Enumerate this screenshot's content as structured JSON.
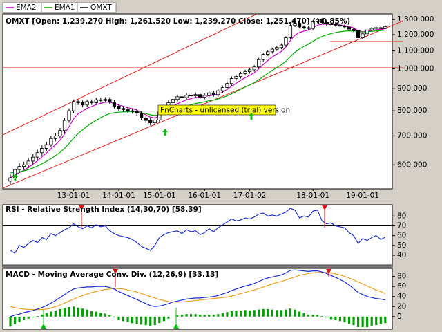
{
  "chart_data": [
    {
      "type": "candlestick",
      "title": "OMXT [Open: 1,239.270  High: 1,261.520  Low: 1,239.270  Close: 1,251.470] (+0.85%)",
      "name": "OMXT",
      "color": "#000000",
      "annotation": "FnCharts - unlicensed (trial) version",
      "categories": [
        null,
        null,
        null,
        null,
        null,
        null,
        null,
        null,
        null,
        null,
        null,
        null,
        null,
        null,
        "13-01-01",
        null,
        null,
        null,
        null,
        null,
        null,
        null,
        null,
        null,
        "14-01-01",
        null,
        null,
        null,
        null,
        null,
        null,
        null,
        null,
        "15-01-01",
        null,
        null,
        null,
        null,
        null,
        null,
        null,
        null,
        null,
        "16-01-01",
        null,
        null,
        null,
        null,
        null,
        null,
        null,
        null,
        null,
        "17-01-02",
        null,
        null,
        null,
        null,
        null,
        null,
        null,
        null,
        null,
        null,
        null,
        null,
        null,
        "18-01-01",
        null,
        null,
        null,
        null,
        null,
        null,
        null,
        null,
        null,
        null,
        "19-01-01",
        null,
        null,
        null,
        null,
        null
      ],
      "open": [
        550,
        560,
        585,
        595,
        600,
        612,
        625,
        640,
        655,
        668,
        690,
        700,
        720,
        760,
        800,
        840,
        835,
        825,
        840,
        835,
        848,
        845,
        850,
        838,
        820,
        810,
        805,
        800,
        798,
        790,
        770,
        760,
        750,
        762,
        795,
        820,
        835,
        850,
        862,
        858,
        870,
        866,
        872,
        860,
        868,
        880,
        872,
        890,
        905,
        925,
        950,
        960,
        975,
        985,
        995,
        1010,
        1050,
        1080,
        1095,
        1110,
        1120,
        1135,
        1180,
        1260,
        1275,
        1250,
        1245,
        1240,
        1285,
        1300,
        1280,
        1270,
        1268,
        1262,
        1255,
        1250,
        1235,
        1225,
        1180,
        1205,
        1230,
        1240,
        1245,
        1239.27
      ],
      "high": [
        570,
        595,
        605,
        610,
        622,
        635,
        650,
        665,
        678,
        700,
        710,
        730,
        770,
        810,
        850,
        850,
        845,
        850,
        850,
        858,
        858,
        860,
        860,
        848,
        830,
        820,
        815,
        810,
        808,
        800,
        780,
        770,
        772,
        805,
        830,
        845,
        860,
        872,
        872,
        880,
        880,
        882,
        882,
        878,
        890,
        890,
        900,
        915,
        935,
        960,
        970,
        985,
        995,
        1005,
        1020,
        1060,
        1090,
        1105,
        1120,
        1130,
        1145,
        1190,
        1270,
        1285,
        1285,
        1260,
        1255,
        1295,
        1310,
        1310,
        1290,
        1280,
        1278,
        1272,
        1265,
        1260,
        1245,
        1235,
        1215,
        1240,
        1250,
        1255,
        1255,
        1261.52
      ],
      "low": [
        540,
        550,
        575,
        585,
        590,
        602,
        615,
        630,
        645,
        658,
        680,
        690,
        710,
        750,
        790,
        825,
        815,
        815,
        825,
        825,
        835,
        835,
        828,
        810,
        800,
        795,
        790,
        788,
        780,
        760,
        750,
        740,
        740,
        752,
        785,
        810,
        825,
        840,
        848,
        848,
        856,
        856,
        850,
        850,
        858,
        862,
        862,
        880,
        895,
        915,
        940,
        950,
        965,
        975,
        985,
        1000,
        1040,
        1070,
        1085,
        1100,
        1110,
        1125,
        1170,
        1250,
        1240,
        1235,
        1230,
        1230,
        1275,
        1270,
        1260,
        1258,
        1252,
        1245,
        1240,
        1225,
        1215,
        1165,
        1170,
        1195,
        1220,
        1230,
        1229,
        1239.27
      ],
      "close": [
        560,
        585,
        595,
        600,
        612,
        625,
        640,
        655,
        668,
        690,
        700,
        720,
        760,
        800,
        840,
        835,
        825,
        840,
        835,
        848,
        845,
        850,
        838,
        820,
        810,
        805,
        800,
        798,
        790,
        770,
        760,
        750,
        762,
        795,
        820,
        835,
        850,
        862,
        858,
        870,
        866,
        872,
        860,
        868,
        880,
        872,
        890,
        905,
        925,
        950,
        960,
        975,
        985,
        995,
        1010,
        1050,
        1080,
        1095,
        1110,
        1120,
        1135,
        1180,
        1260,
        1275,
        1250,
        1245,
        1240,
        1285,
        1300,
        1280,
        1270,
        1268,
        1262,
        1255,
        1250,
        1235,
        1225,
        1180,
        1205,
        1230,
        1240,
        1245,
        1239.27,
        1251.47
      ],
      "series": [
        {
          "name": "EMA2",
          "color": "#cc00cc",
          "values": [
            560,
            568,
            576,
            583,
            592,
            602,
            613,
            626,
            639,
            654,
            668,
            684,
            707,
            735,
            767,
            787,
            798,
            811,
            818,
            827,
            832,
            837,
            837,
            832,
            825,
            819,
            813,
            809,
            803,
            793,
            783,
            773,
            770,
            778,
            791,
            804,
            818,
            831,
            839,
            848,
            853,
            859,
            859,
            862,
            867,
            869,
            875,
            884,
            896,
            912,
            926,
            941,
            954,
            966,
            979,
            1000,
            1024,
            1045,
            1065,
            1081,
            1097,
            1122,
            1163,
            1197,
            1213,
            1223,
            1228,
            1245,
            1262,
            1267,
            1268,
            1268,
            1266,
            1263,
            1259,
            1252,
            1244,
            1225,
            1219,
            1222,
            1227,
            1232,
            1234,
            1239
          ]
        },
        {
          "name": "EMA1",
          "color": "#00b000",
          "values": [
            575,
            576,
            578,
            581,
            585,
            590,
            596,
            603,
            611,
            620,
            630,
            641,
            655,
            672,
            692,
            709,
            723,
            737,
            749,
            761,
            771,
            781,
            788,
            792,
            794,
            795,
            796,
            796,
            795,
            792,
            788,
            783,
            780,
            782,
            787,
            793,
            800,
            807,
            813,
            820,
            826,
            832,
            835,
            839,
            844,
            847,
            852,
            858,
            866,
            876,
            886,
            897,
            908,
            918,
            929,
            944,
            960,
            976,
            992,
            1007,
            1022,
            1041,
            1067,
            1092,
            1111,
            1127,
            1141,
            1158,
            1175,
            1188,
            1198,
            1206,
            1213,
            1218,
            1222,
            1224,
            1224,
            1219,
            1217,
            1219,
            1221,
            1224,
            1226,
            1229
          ]
        }
      ],
      "log_scale": true,
      "ylim": [
        528,
        1340
      ],
      "yticks": [
        {
          "value": 600,
          "label": "600.000"
        },
        {
          "value": 700,
          "label": "700.000"
        },
        {
          "value": 800,
          "label": "800.000"
        },
        {
          "value": 900,
          "label": "900.000"
        },
        {
          "value": 1000,
          "label": "1,000.000"
        },
        {
          "value": 1100,
          "label": "1,100.000"
        },
        {
          "value": 1200,
          "label": "1,200.000"
        },
        {
          "value": 1300,
          "label": "1,300.000"
        }
      ]
    },
    {
      "type": "line",
      "title": "RSI - Relative Strength Index (14,30,70) [58.39]",
      "color": "#2030d0",
      "values": [
        45,
        42,
        50,
        48,
        52,
        55,
        53,
        58,
        56,
        62,
        60,
        63,
        66,
        68,
        72,
        69,
        67,
        70,
        68,
        71,
        69,
        70,
        65,
        62,
        60,
        59,
        58,
        56,
        53,
        49,
        47,
        45,
        50,
        58,
        61,
        63,
        64,
        65,
        62,
        66,
        64,
        65,
        61,
        63,
        67,
        64,
        68,
        71,
        74,
        77,
        75,
        76,
        78,
        77,
        79,
        82,
        83,
        80,
        81,
        80,
        82,
        84,
        88,
        86,
        78,
        80,
        79,
        85,
        86,
        75,
        72,
        73,
        70,
        69,
        68,
        63,
        60,
        52,
        57,
        55,
        58,
        60,
        56,
        58.39
      ],
      "levels": [
        30,
        70
      ],
      "ylim": [
        28,
        91.5
      ],
      "yticks": [
        40,
        50,
        60,
        70,
        80
      ]
    },
    {
      "type": "macd",
      "title": "MACD - Moving Average Conv. Div. (12,26,9) [33.13]",
      "series": [
        {
          "color": "#1a2ad0",
          "values": [
            0,
            3,
            5,
            8,
            10,
            12,
            15,
            18,
            22,
            27,
            32,
            38,
            44,
            50,
            55,
            57,
            58,
            59,
            59,
            60,
            60,
            60,
            58,
            55,
            50,
            46,
            42,
            38,
            34,
            30,
            26,
            22,
            20,
            21,
            23,
            26,
            29,
            31,
            33,
            35,
            36,
            37,
            37,
            38,
            39,
            40,
            42,
            45,
            48,
            52,
            55,
            58,
            61,
            63,
            66,
            70,
            74,
            77,
            79,
            81,
            83,
            87,
            92,
            93,
            92,
            91,
            90,
            91,
            91,
            89,
            86,
            82,
            78,
            74,
            69,
            63,
            56,
            48,
            44,
            40,
            38,
            36,
            35,
            33.13
          ]
        },
        {
          "color": "#f0a020",
          "values": [
            20,
            18,
            16,
            15,
            14,
            14,
            14,
            14,
            15,
            17,
            20,
            23,
            27,
            31,
            35,
            39,
            42,
            45,
            48,
            50,
            52,
            54,
            55,
            56,
            56,
            55,
            53,
            51,
            49,
            46,
            43,
            40,
            37,
            34,
            32,
            30,
            29,
            29,
            29,
            30,
            31,
            32,
            33,
            34,
            35,
            36,
            37,
            38,
            39,
            41,
            43,
            46,
            48,
            51,
            53,
            56,
            59,
            62,
            65,
            68,
            70,
            73,
            76,
            79,
            82,
            84,
            86,
            87,
            88,
            88,
            88,
            87,
            85,
            83,
            80,
            77,
            73,
            69,
            65,
            61,
            57,
            53,
            50,
            46
          ]
        }
      ],
      "histogram": {
        "color": "#00a000",
        "values": [
          -20,
          -15,
          -11,
          -7,
          -4,
          -2,
          1,
          4,
          7,
          10,
          12,
          15,
          17,
          19,
          20,
          18,
          16,
          14,
          11,
          10,
          8,
          6,
          3,
          -1,
          -6,
          -9,
          -11,
          -13,
          -15,
          -16,
          -17,
          -18,
          -17,
          -13,
          -9,
          -4,
          0,
          2,
          4,
          5,
          5,
          5,
          4,
          4,
          4,
          4,
          5,
          7,
          9,
          11,
          12,
          12,
          13,
          12,
          13,
          14,
          15,
          15,
          14,
          13,
          13,
          14,
          16,
          14,
          10,
          7,
          4,
          4,
          3,
          1,
          -2,
          -5,
          -7,
          -9,
          -11,
          -14,
          -17,
          -21,
          -21,
          -21,
          -19,
          -17,
          -15,
          -12.87
        ]
      },
      "ylim": [
        -25,
        96
      ],
      "yticks": [
        0,
        20,
        40,
        60,
        80
      ]
    }
  ]
}
